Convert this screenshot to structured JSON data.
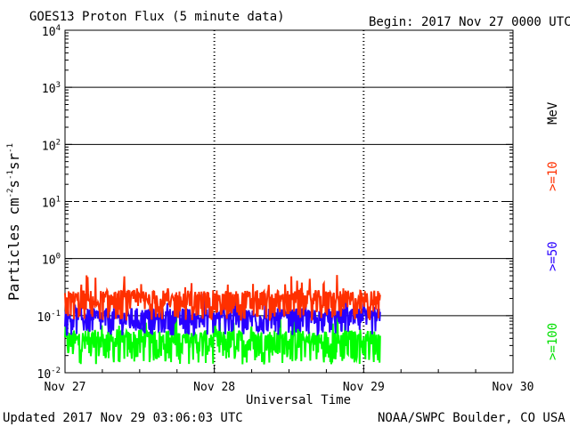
{
  "chart_data": {
    "type": "line",
    "title": "GOES13 Proton Flux (5 minute data)",
    "begin": "Begin: 2017 Nov 27 0000 UTC",
    "xlabel": "Universal Time",
    "ylabel_main": "Particles cm",
    "ylabel_exp1": "-2",
    "ylabel_s": "s",
    "ylabel_exp2": "-1",
    "ylabel_sr": "sr",
    "ylabel_exp3": "-1",
    "y_scale": "log",
    "ylim": [
      0.01,
      10000
    ],
    "y_ticks": [
      {
        "base": "10",
        "exp": "4",
        "value": 10000
      },
      {
        "base": "10",
        "exp": "3",
        "value": 1000
      },
      {
        "base": "10",
        "exp": "2",
        "value": 100
      },
      {
        "base": "10",
        "exp": "1",
        "value": 10
      },
      {
        "base": "10",
        "exp": "0",
        "value": 1
      },
      {
        "base": "10",
        "exp": "-1",
        "value": 0.1
      },
      {
        "base": "10",
        "exp": "-2",
        "value": 0.01
      }
    ],
    "x_days_range": [
      0,
      3
    ],
    "x_ticks": [
      "Nov 27",
      "Nov 28",
      "Nov 29",
      "Nov 30"
    ],
    "data_end_day": 2.11,
    "threshold_lines": [
      {
        "value": 1000,
        "style": "solid"
      },
      {
        "value": 100,
        "style": "solid"
      },
      {
        "value": 10,
        "style": "dashed"
      },
      {
        "value": 1,
        "style": "solid"
      },
      {
        "value": 0.1,
        "style": "solid"
      }
    ],
    "series": [
      {
        "name": ">=10",
        "color": "#ff3000",
        "baseline": 0.18,
        "spread": 0.22
      },
      {
        "name": ">=50",
        "color": "#2800ff",
        "baseline": 0.09,
        "spread": 0.2
      },
      {
        "name": ">=100",
        "color": "#00ff00",
        "baseline": 0.035,
        "spread": 0.24
      }
    ],
    "legend_unit": "MeV"
  },
  "footer": {
    "updated": "Updated 2017 Nov 29 03:06:03 UTC",
    "credit": "NOAA/SWPC Boulder, CO USA"
  }
}
